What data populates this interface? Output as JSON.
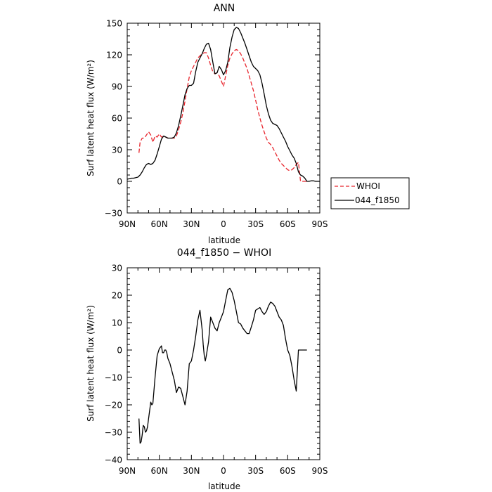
{
  "chart_data": [
    {
      "type": "line",
      "title": "ANN",
      "xlabel": "latitude",
      "ylabel": "Surf latent heat flux (W/m²)",
      "xlim": [
        90,
        -90
      ],
      "ylim": [
        -30,
        150
      ],
      "xticks": [
        90,
        60,
        30,
        0,
        -30,
        -60,
        -90
      ],
      "xtick_labels": [
        "90N",
        "60N",
        "30N",
        "0",
        "30S",
        "60S",
        "90S"
      ],
      "yticks": [
        -30,
        0,
        30,
        60,
        90,
        120,
        150
      ],
      "ytick_labels": [
        "−30",
        "0",
        "30",
        "60",
        "90",
        "120",
        "150"
      ],
      "legend_position": "right",
      "series": [
        {
          "name": "WHOI",
          "color": "#e8242c",
          "dash": "dashed",
          "x": [
            79,
            78,
            76,
            74,
            72,
            70,
            68,
            66,
            64,
            62,
            60,
            58,
            56,
            54,
            52,
            50,
            48,
            46,
            44,
            42,
            40,
            38,
            36,
            34,
            32,
            30,
            28,
            26,
            24,
            22,
            20,
            18,
            16,
            14,
            12,
            10,
            8,
            6,
            4,
            2,
            0,
            -2,
            -4,
            -6,
            -8,
            -10,
            -12,
            -14,
            -16,
            -18,
            -20,
            -22,
            -24,
            -26,
            -28,
            -30,
            -32,
            -34,
            -36,
            -38,
            -40,
            -42,
            -44,
            -46,
            -48,
            -50,
            -52,
            -54,
            -56,
            -58,
            -60,
            -62,
            -64,
            -66,
            -68,
            -70,
            -72,
            -74,
            -76,
            -78
          ],
          "y": [
            27,
            37,
            41,
            41,
            44,
            47,
            44,
            37,
            43,
            42,
            45,
            42,
            43,
            42,
            41,
            41,
            41,
            41,
            43,
            49,
            56,
            65,
            76,
            88,
            99,
            105,
            109,
            113,
            117,
            119,
            121,
            122,
            122,
            117,
            110,
            104,
            102,
            103,
            100,
            95,
            90,
            100,
            110,
            117,
            121,
            124,
            125,
            124,
            121,
            117,
            112,
            107,
            100,
            93,
            86,
            77,
            68,
            60,
            53,
            47,
            41,
            37,
            35,
            32,
            28,
            24,
            20,
            17,
            15,
            13,
            11,
            10,
            11,
            13,
            16,
            18,
            0,
            0,
            0,
            0
          ]
        },
        {
          "name": "044_f1850",
          "color": "#000000",
          "dash": "solid",
          "x": [
            90,
            88,
            86,
            84,
            82,
            80,
            78,
            76,
            74,
            72,
            70,
            68,
            66,
            64,
            62,
            60,
            58,
            56,
            54,
            52,
            50,
            48,
            46,
            44,
            42,
            40,
            38,
            36,
            34,
            32,
            30,
            28,
            26,
            24,
            22,
            20,
            18,
            16,
            14,
            12,
            10,
            8,
            6,
            4,
            2,
            0,
            -2,
            -4,
            -6,
            -8,
            -10,
            -12,
            -14,
            -16,
            -18,
            -20,
            -22,
            -24,
            -26,
            -28,
            -30,
            -32,
            -34,
            -36,
            -38,
            -40,
            -42,
            -44,
            -46,
            -48,
            -50,
            -52,
            -54,
            -56,
            -58,
            -60,
            -62,
            -64,
            -66,
            -68,
            -70,
            -72,
            -74,
            -76,
            -78,
            -80,
            -82,
            -84,
            -86,
            -88,
            -90
          ],
          "y": [
            2,
            2.5,
            3,
            3,
            3.5,
            4,
            6,
            9,
            13,
            16,
            17,
            16,
            17,
            20,
            26,
            33,
            40,
            43,
            42,
            41,
            41,
            41,
            42,
            46,
            53,
            62,
            72,
            82,
            88,
            91,
            91,
            93,
            104,
            113,
            117,
            121,
            126,
            130,
            131,
            125,
            113,
            102,
            103,
            109,
            106,
            101,
            105,
            113,
            127,
            137,
            144,
            146,
            145,
            141,
            136,
            131,
            125,
            119,
            113,
            109,
            107,
            105,
            101,
            93,
            83,
            72,
            64,
            58,
            55,
            54,
            53,
            50,
            46,
            42,
            38,
            33,
            29,
            25,
            22,
            17,
            9,
            6,
            5,
            3,
            0,
            0,
            0.5,
            0.5,
            0,
            0,
            0
          ]
        }
      ],
      "legend": [
        "WHOI",
        "044_f1850"
      ]
    },
    {
      "type": "line",
      "title": "044_f1850 − WHOI",
      "xlabel": "latitude",
      "ylabel": "Surf latent heat flux (W/m²)",
      "xlim": [
        90,
        -90
      ],
      "ylim": [
        -40,
        30
      ],
      "xticks": [
        90,
        60,
        30,
        0,
        -30,
        -60,
        -90
      ],
      "xtick_labels": [
        "90N",
        "60N",
        "30N",
        "0",
        "30S",
        "60S",
        "90S"
      ],
      "yticks": [
        -40,
        -30,
        -20,
        -10,
        0,
        10,
        20,
        30
      ],
      "ytick_labels": [
        "−40",
        "−30",
        "−20",
        "−10",
        "0",
        "10",
        "20",
        "30"
      ],
      "series": [
        {
          "color": "#000000",
          "x": [
            79,
            78,
            77,
            76,
            75,
            74,
            73,
            72,
            71,
            70,
            68,
            67,
            66,
            64,
            62,
            60,
            58,
            57,
            56,
            55,
            54,
            53,
            52,
            50,
            48,
            46,
            44,
            42,
            40,
            38,
            36,
            34,
            32,
            30,
            28,
            26,
            24,
            22,
            20,
            19,
            18,
            17,
            16,
            14,
            12,
            10,
            8,
            6,
            4,
            2,
            0,
            -2,
            -4,
            -6,
            -8,
            -10,
            -12,
            -14,
            -16,
            -18,
            -20,
            -22,
            -24,
            -26,
            -28,
            -30,
            -32,
            -34,
            -36,
            -38,
            -40,
            -42,
            -44,
            -46,
            -48,
            -50,
            -52,
            -54,
            -56,
            -58,
            -60,
            -62,
            -64,
            -66,
            -68,
            -70,
            -72,
            -74,
            -76,
            -78
          ],
          "y": [
            -25,
            -34,
            -33.5,
            -31,
            -27.5,
            -28,
            -30,
            -29.5,
            -28,
            -25,
            -19,
            -20,
            -19.5,
            -10,
            -2,
            0.5,
            1.5,
            -1,
            -1,
            0,
            0,
            -1,
            -3,
            -5,
            -8,
            -11,
            -15.5,
            -13.5,
            -14,
            -17,
            -20,
            -15,
            -5,
            -4,
            0,
            5,
            11,
            14.5,
            7.5,
            2,
            -2,
            -4,
            -2,
            3,
            12,
            10,
            8,
            7,
            10,
            12,
            14,
            18,
            22,
            22.5,
            21,
            18,
            14,
            10,
            9.5,
            8,
            7,
            6,
            6,
            8.5,
            11,
            14.5,
            15,
            15.5,
            14,
            13,
            14,
            16,
            17.5,
            17,
            16,
            14,
            12,
            11,
            9,
            4,
            0,
            -2,
            -6,
            -11,
            -15,
            0,
            0,
            0,
            0,
            0
          ]
        }
      ]
    }
  ]
}
